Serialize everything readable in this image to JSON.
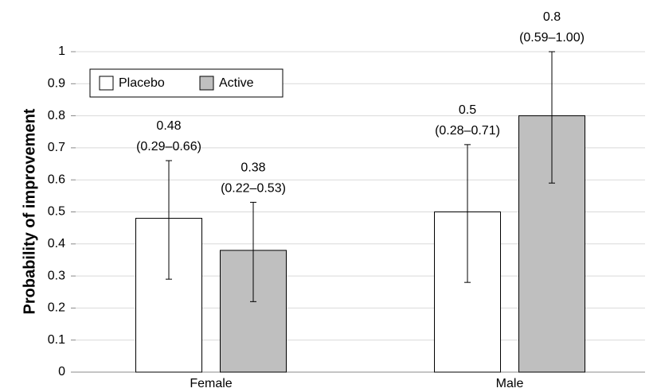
{
  "chart_data": {
    "type": "bar",
    "y_label": "Probability of improvement",
    "categories": [
      "Female",
      "Male"
    ],
    "series": [
      {
        "name": "Placebo",
        "color": "#ffffff",
        "values": [
          0.48,
          0.5
        ],
        "lower": [
          0.29,
          0.28
        ],
        "upper": [
          0.66,
          0.71
        ],
        "ci_labels": [
          "(0.29–0.66)",
          "(0.28–0.71)"
        ]
      },
      {
        "name": "Active",
        "color": "#bfbfbf",
        "values": [
          0.38,
          0.8
        ],
        "lower": [
          0.22,
          0.59
        ],
        "upper": [
          0.53,
          1.0
        ],
        "ci_labels": [
          "(0.22–0.53)",
          "(0.59–1.00)"
        ]
      }
    ],
    "ylim": [
      0,
      1
    ],
    "yticks": [
      0,
      0.1,
      0.2,
      0.3,
      0.4,
      0.5,
      0.6,
      0.7,
      0.8,
      0.9,
      1
    ],
    "grid": true,
    "legend": "upper left"
  }
}
